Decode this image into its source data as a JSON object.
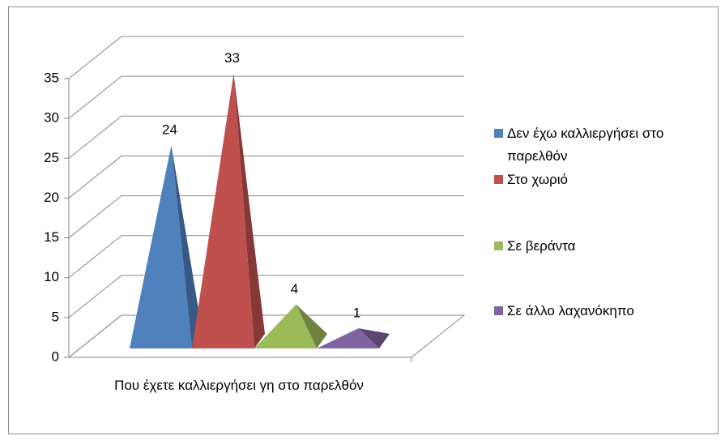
{
  "chart_data": {
    "type": "pyramid3d",
    "categories": [
      "Που έχετε καλλιεργήσει γη στο παρελθόν"
    ],
    "series": [
      {
        "name": "Δεν έχω καλλιεργήσει στο παρελθόν",
        "color": "#4f81bd",
        "values": [
          24
        ]
      },
      {
        "name": "Στο χωριό",
        "color": "#c0504d",
        "values": [
          33
        ]
      },
      {
        "name": "Σε βεράντα",
        "color": "#9bbb59",
        "values": [
          4
        ]
      },
      {
        "name": "Σε άλλο λαχανόκηπο",
        "color": "#8064a2",
        "values": [
          1
        ]
      }
    ],
    "ylim": [
      0,
      35
    ],
    "yticks": [
      0,
      5,
      10,
      15,
      20,
      25,
      30,
      35
    ],
    "grid": true,
    "legend": "right"
  }
}
